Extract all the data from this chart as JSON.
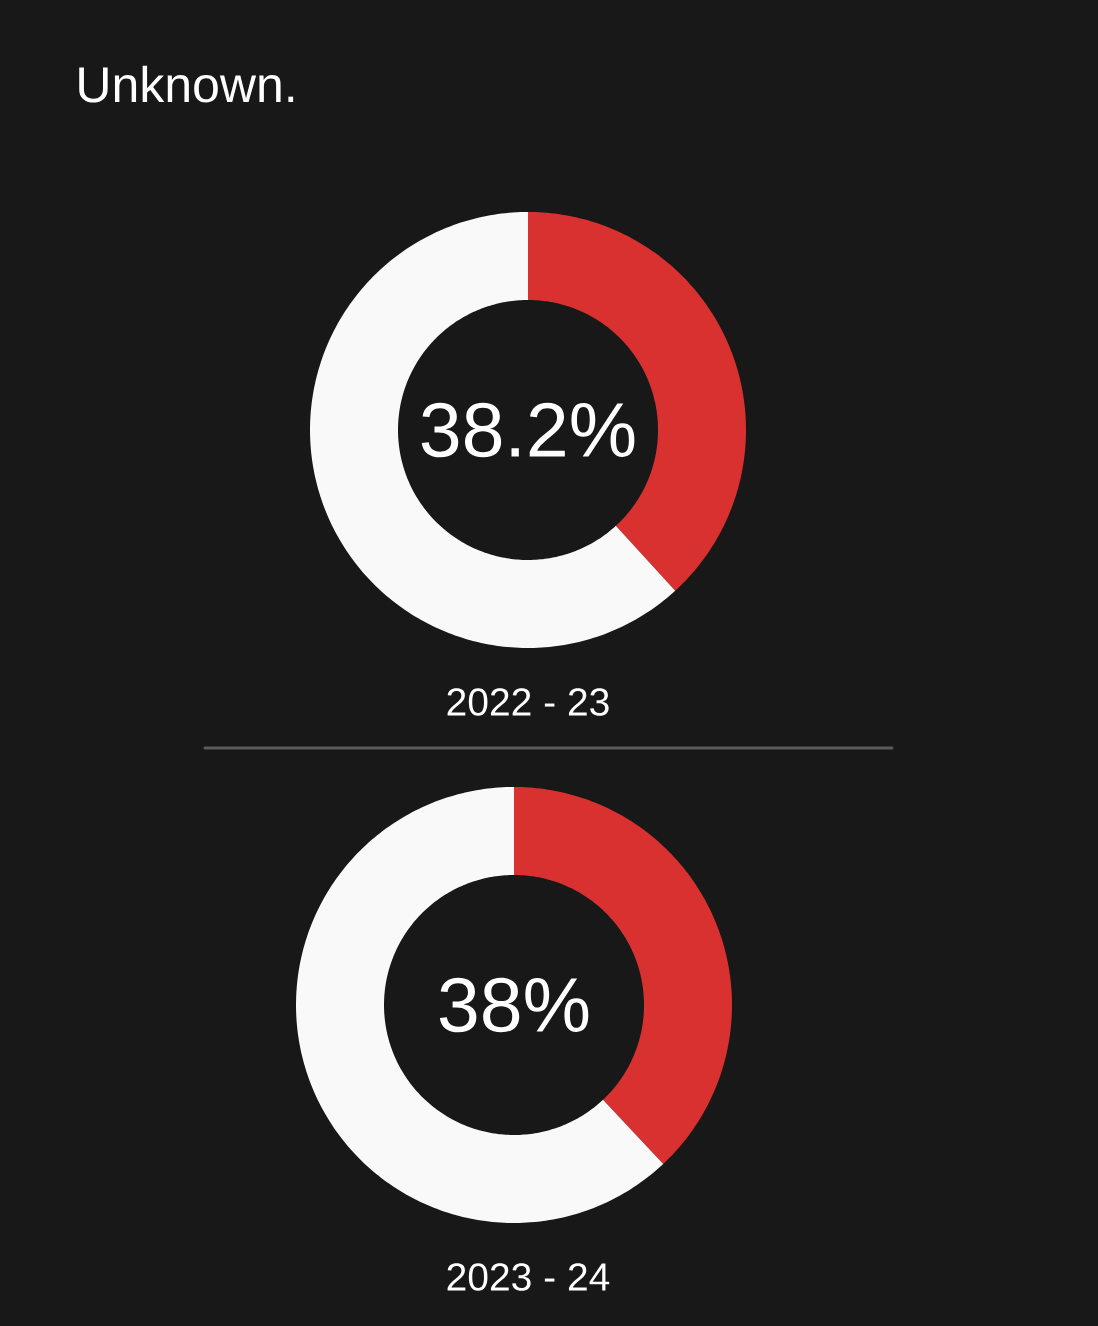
{
  "chart_data": [
    {
      "type": "donut",
      "title": "Unknown.",
      "categories": [
        null,
        null
      ],
      "values": [
        38.2,
        61.8
      ],
      "colors": [
        "#d93030",
        "#f9f9f9"
      ],
      "value_labels": [
        "38.2%",
        null
      ],
      "xlabel": "2022 - 23"
    },
    {
      "type": "donut",
      "categories": [
        null,
        null
      ],
      "values": [
        38,
        62
      ],
      "colors": [
        "#d93030",
        "#f9f9f9"
      ],
      "value_labels": [
        "38%",
        null
      ],
      "xlabel": "2023 - 24"
    }
  ]
}
